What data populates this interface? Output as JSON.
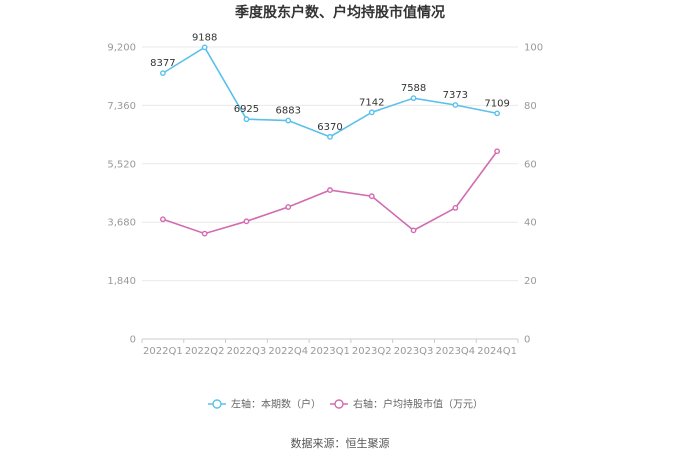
{
  "chart_data": {
    "type": "line",
    "title": "季度股东户数、户均持股市值情况",
    "categories": [
      "2022Q1",
      "2022Q2",
      "2022Q3",
      "2022Q4",
      "2023Q1",
      "2023Q2",
      "2023Q3",
      "2023Q4",
      "2024Q1"
    ],
    "y_left": {
      "ylim": [
        0,
        9200
      ],
      "ticks": [
        "0",
        "1,840",
        "3,680",
        "5,520",
        "7,360",
        "9,200"
      ]
    },
    "y_right": {
      "ylim": [
        0,
        100
      ],
      "ticks": [
        "0",
        "20",
        "40",
        "60",
        "80",
        "100"
      ]
    },
    "series": [
      {
        "name": "左轴：本期数（户）",
        "axis": "left",
        "color": "#5bc0eb",
        "values": [
          8377,
          9188,
          6925,
          6883,
          6370,
          7142,
          7588,
          7373,
          7109
        ],
        "labels": [
          "8377",
          "9188",
          "6925",
          "6883",
          "6370",
          "7142",
          "7588",
          "7373",
          "7109"
        ]
      },
      {
        "name": "右轴：户均持股市值（万元）",
        "axis": "right",
        "color": "#d36bb0",
        "values": [
          41.0,
          36.1,
          40.3,
          45.2,
          51.0,
          48.9,
          37.2,
          44.9,
          64.3
        ]
      }
    ],
    "grid": true,
    "legend_position": "bottom",
    "source": "数据来源：恒生聚源"
  }
}
